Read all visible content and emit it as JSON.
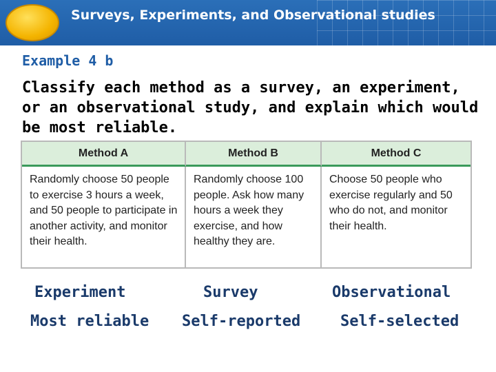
{
  "header": {
    "title": "Surveys, Experiments, and Observational studies"
  },
  "example_label": "Example 4 b",
  "instructions": "Classify each method as a survey, an experiment, or an observational study, and explain which would be most reliable.",
  "table": {
    "headers": [
      "Method A",
      "Method B",
      "Method C"
    ],
    "cells": [
      "Randomly choose 50 people to exercise 3 hours a week, and 50 people to participate in another activity, and monitor their health.",
      "Randomly choose 100 people. Ask how many hours a week they exercise, and how healthy they are.",
      "Choose 50 people who exercise regularly and 50 who do not, and monitor their health."
    ]
  },
  "answers": {
    "classification": [
      "Experiment",
      "Survey",
      "Observational"
    ],
    "reliability": [
      "Most reliable",
      "Self-reported",
      "Self-selected"
    ]
  },
  "colors": {
    "banner": "#1f5da6",
    "oval": "#f4b400",
    "table_header_bg": "#dbeedb",
    "table_header_rule": "#3a9a5a",
    "example_label": "#1f5da6"
  }
}
